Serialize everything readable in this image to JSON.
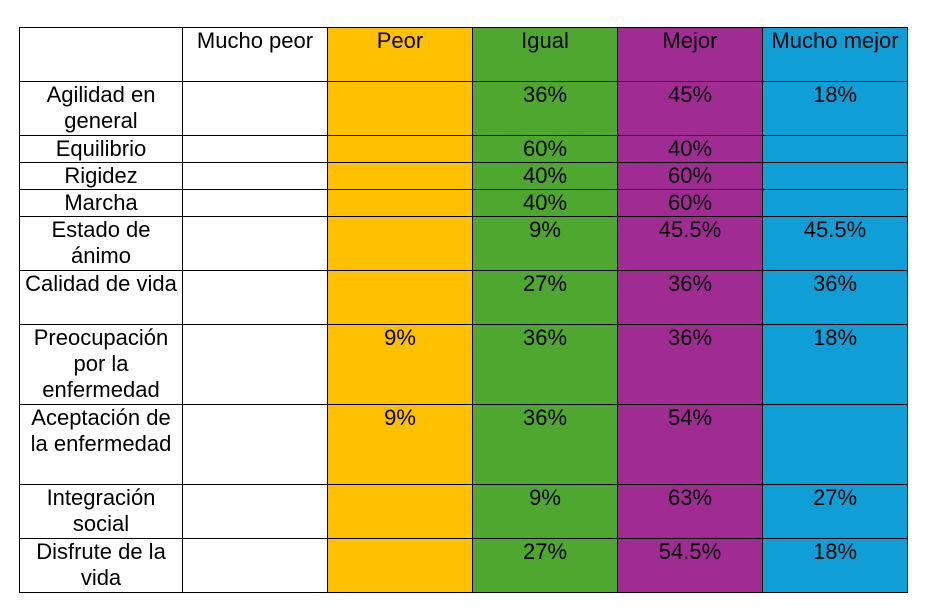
{
  "table": {
    "columns": [
      {
        "label": "",
        "color": "#ffffff"
      },
      {
        "label": "Mucho peor",
        "color": "#ffffff"
      },
      {
        "label": "Peor",
        "color": "#ffc000"
      },
      {
        "label": "Igual",
        "color": "#4ea72e"
      },
      {
        "label": "Mejor",
        "color": "#a02b93"
      },
      {
        "label": "Mucho mejor",
        "color": "#0f9ed5"
      }
    ],
    "rows": [
      {
        "label": "Agilidad en general",
        "values": [
          "",
          "",
          "36%",
          "45%",
          "18%"
        ]
      },
      {
        "label": "Equilibrio",
        "values": [
          "",
          "",
          "60%",
          "40%",
          ""
        ]
      },
      {
        "label": "Rigidez",
        "values": [
          "",
          "",
          "40%",
          "60%",
          ""
        ]
      },
      {
        "label": "Marcha",
        "values": [
          "",
          "",
          "40%",
          "60%",
          ""
        ]
      },
      {
        "label": "Estado de ánimo",
        "values": [
          "",
          "",
          "9%",
          "45.5%",
          "45.5%"
        ]
      },
      {
        "label": "Calidad de vida",
        "values": [
          "",
          "",
          "27%",
          "36%",
          "36%"
        ]
      },
      {
        "label": "Preocupación por la enfermedad",
        "values": [
          "",
          "9%",
          "36%",
          "36%",
          "18%"
        ]
      },
      {
        "label": "Aceptación de la enfermedad",
        "values": [
          "",
          "9%",
          "36%",
          "54%",
          ""
        ]
      },
      {
        "label": "Integración social",
        "values": [
          "",
          "",
          "9%",
          "63%",
          "27%"
        ]
      },
      {
        "label": "Disfrute de la vida",
        "values": [
          "",
          "",
          "27%",
          "54.5%",
          "18%"
        ]
      }
    ]
  }
}
